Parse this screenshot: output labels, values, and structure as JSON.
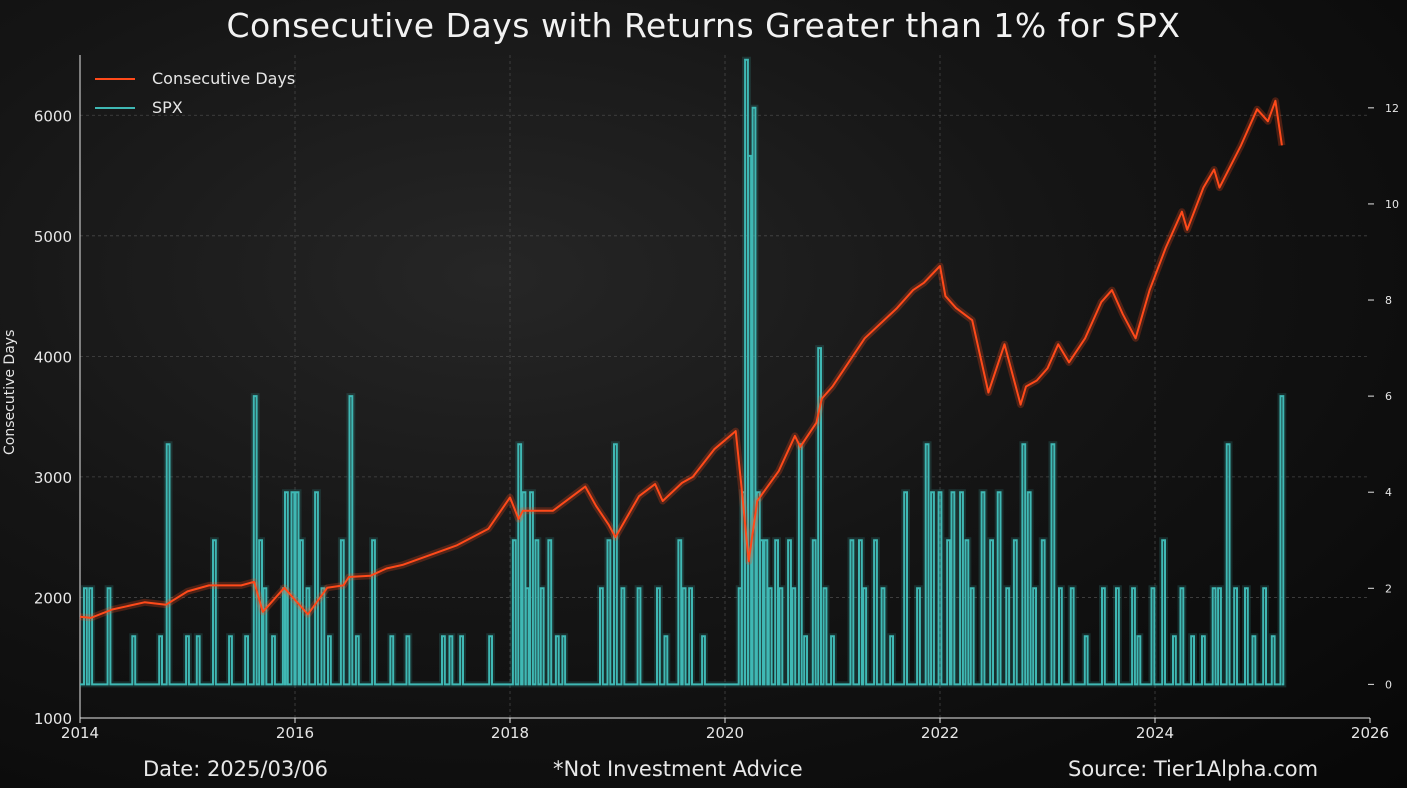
{
  "footer": {
    "date": "Date: 2025/03/06",
    "advice": "*Not Investment Advice",
    "source": "Source: Tier1Alpha.com"
  },
  "colors": {
    "spx_line": "#ff4a1a",
    "consec_line": "#3fb8b4",
    "background": "#0b0b0b",
    "grid": "#5a5a5a",
    "text": "#e6e6e6"
  },
  "chart_data": {
    "type": "line",
    "title": "Consecutive Days with Returns Greater than 1% for SPX",
    "xlabel": "",
    "ylabel": "Consecutive Days",
    "xlim": [
      2014,
      2026
    ],
    "ylim": [
      1000,
      6500
    ],
    "y2lim": [
      -0.7,
      13.1
    ],
    "x_ticks": [
      "2014",
      "2016",
      "2018",
      "2020",
      "2022",
      "2024",
      "2026"
    ],
    "y_ticks": [
      "1000",
      "2000",
      "3000",
      "4000",
      "5000",
      "6000"
    ],
    "y2_ticks": [
      "0",
      "2",
      "4",
      "6",
      "8",
      "10",
      "12"
    ],
    "grid": true,
    "legend_position": "top-left",
    "series": [
      {
        "name": "Consecutive Days",
        "axis": "left",
        "x": [
          2014.0,
          2014.1,
          2014.3,
          2014.6,
          2014.8,
          2015.0,
          2015.2,
          2015.5,
          2015.62,
          2015.7,
          2015.9,
          2016.05,
          2016.12,
          2016.3,
          2016.45,
          2016.5,
          2016.7,
          2016.85,
          2017.0,
          2017.5,
          2017.8,
          2018.0,
          2018.08,
          2018.12,
          2018.4,
          2018.7,
          2018.8,
          2018.92,
          2018.98,
          2019.2,
          2019.35,
          2019.42,
          2019.6,
          2019.7,
          2019.9,
          2020.1,
          2020.15,
          2020.22,
          2020.3,
          2020.5,
          2020.65,
          2020.7,
          2020.85,
          2020.9,
          2021.0,
          2021.3,
          2021.6,
          2021.75,
          2021.85,
          2022.0,
          2022.05,
          2022.15,
          2022.3,
          2022.35,
          2022.45,
          2022.6,
          2022.75,
          2022.8,
          2022.9,
          2023.0,
          2023.1,
          2023.2,
          2023.35,
          2023.5,
          2023.6,
          2023.7,
          2023.82,
          2023.95,
          2024.1,
          2024.25,
          2024.3,
          2024.45,
          2024.55,
          2024.6,
          2024.8,
          2024.95,
          2025.05,
          2025.12,
          2025.18
        ],
        "values": [
          1840,
          1830,
          1900,
          1960,
          1940,
          2050,
          2100,
          2100,
          2130,
          1880,
          2080,
          1930,
          1860,
          2080,
          2100,
          2170,
          2180,
          2240,
          2270,
          2430,
          2570,
          2830,
          2650,
          2720,
          2720,
          2920,
          2760,
          2600,
          2500,
          2840,
          2940,
          2800,
          2950,
          3000,
          3230,
          3380,
          2950,
          2300,
          2800,
          3050,
          3340,
          3250,
          3450,
          3650,
          3750,
          4150,
          4400,
          4550,
          4610,
          4750,
          4500,
          4400,
          4300,
          4100,
          3700,
          4100,
          3600,
          3750,
          3800,
          3900,
          4100,
          3950,
          4150,
          4450,
          4550,
          4350,
          4150,
          4550,
          4900,
          5200,
          5050,
          5400,
          5550,
          5400,
          5750,
          6050,
          5950,
          6120,
          5750
        ]
      },
      {
        "name": "SPX",
        "axis": "right",
        "spikes": [
          [
            2014.05,
            2
          ],
          [
            2014.1,
            2
          ],
          [
            2014.27,
            2
          ],
          [
            2014.5,
            1
          ],
          [
            2014.75,
            1
          ],
          [
            2014.82,
            5
          ],
          [
            2015.0,
            1
          ],
          [
            2015.1,
            1
          ],
          [
            2015.25,
            3
          ],
          [
            2015.4,
            1
          ],
          [
            2015.55,
            1
          ],
          [
            2015.63,
            6
          ],
          [
            2015.68,
            3
          ],
          [
            2015.72,
            2
          ],
          [
            2015.8,
            1
          ],
          [
            2015.9,
            2
          ],
          [
            2015.92,
            4
          ],
          [
            2015.98,
            4
          ],
          [
            2016.02,
            4
          ],
          [
            2016.06,
            3
          ],
          [
            2016.12,
            2
          ],
          [
            2016.2,
            4
          ],
          [
            2016.26,
            2
          ],
          [
            2016.32,
            1
          ],
          [
            2016.44,
            3
          ],
          [
            2016.52,
            6
          ],
          [
            2016.58,
            1
          ],
          [
            2016.73,
            3
          ],
          [
            2016.9,
            1
          ],
          [
            2017.05,
            1
          ],
          [
            2017.38,
            1
          ],
          [
            2017.45,
            1
          ],
          [
            2017.55,
            1
          ],
          [
            2017.82,
            1
          ],
          [
            2018.04,
            3
          ],
          [
            2018.09,
            5
          ],
          [
            2018.13,
            4
          ],
          [
            2018.16,
            2
          ],
          [
            2018.2,
            4
          ],
          [
            2018.25,
            3
          ],
          [
            2018.3,
            2
          ],
          [
            2018.37,
            3
          ],
          [
            2018.44,
            1
          ],
          [
            2018.5,
            1
          ],
          [
            2018.85,
            2
          ],
          [
            2018.92,
            3
          ],
          [
            2018.98,
            5
          ],
          [
            2019.05,
            2
          ],
          [
            2019.2,
            2
          ],
          [
            2019.38,
            2
          ],
          [
            2019.45,
            1
          ],
          [
            2019.58,
            3
          ],
          [
            2019.62,
            2
          ],
          [
            2019.68,
            2
          ],
          [
            2019.8,
            1
          ],
          [
            2020.14,
            2
          ],
          [
            2020.17,
            4
          ],
          [
            2020.2,
            13
          ],
          [
            2020.23,
            11
          ],
          [
            2020.27,
            12
          ],
          [
            2020.31,
            4
          ],
          [
            2020.34,
            3
          ],
          [
            2020.38,
            3
          ],
          [
            2020.42,
            2
          ],
          [
            2020.48,
            3
          ],
          [
            2020.52,
            2
          ],
          [
            2020.6,
            3
          ],
          [
            2020.64,
            2
          ],
          [
            2020.7,
            5
          ],
          [
            2020.75,
            1
          ],
          [
            2020.83,
            3
          ],
          [
            2020.88,
            7
          ],
          [
            2020.93,
            2
          ],
          [
            2021.0,
            1
          ],
          [
            2021.18,
            3
          ],
          [
            2021.26,
            3
          ],
          [
            2021.3,
            2
          ],
          [
            2021.4,
            3
          ],
          [
            2021.47,
            2
          ],
          [
            2021.55,
            1
          ],
          [
            2021.68,
            4
          ],
          [
            2021.8,
            2
          ],
          [
            2021.88,
            5
          ],
          [
            2021.93,
            4
          ],
          [
            2022.0,
            4
          ],
          [
            2022.08,
            3
          ],
          [
            2022.12,
            4
          ],
          [
            2022.2,
            4
          ],
          [
            2022.25,
            3
          ],
          [
            2022.3,
            2
          ],
          [
            2022.4,
            4
          ],
          [
            2022.48,
            3
          ],
          [
            2022.55,
            4
          ],
          [
            2022.63,
            2
          ],
          [
            2022.7,
            3
          ],
          [
            2022.78,
            5
          ],
          [
            2022.83,
            4
          ],
          [
            2022.88,
            2
          ],
          [
            2022.96,
            3
          ],
          [
            2023.05,
            5
          ],
          [
            2023.12,
            2
          ],
          [
            2023.23,
            2
          ],
          [
            2023.36,
            1
          ],
          [
            2023.52,
            2
          ],
          [
            2023.65,
            2
          ],
          [
            2023.8,
            2
          ],
          [
            2023.85,
            1
          ],
          [
            2023.98,
            2
          ],
          [
            2024.08,
            3
          ],
          [
            2024.18,
            1
          ],
          [
            2024.25,
            2
          ],
          [
            2024.35,
            1
          ],
          [
            2024.45,
            1
          ],
          [
            2024.55,
            2
          ],
          [
            2024.6,
            2
          ],
          [
            2024.68,
            5
          ],
          [
            2024.75,
            2
          ],
          [
            2024.85,
            2
          ],
          [
            2024.92,
            1
          ],
          [
            2025.02,
            2
          ],
          [
            2025.1,
            1
          ],
          [
            2025.18,
            6
          ]
        ]
      }
    ]
  }
}
